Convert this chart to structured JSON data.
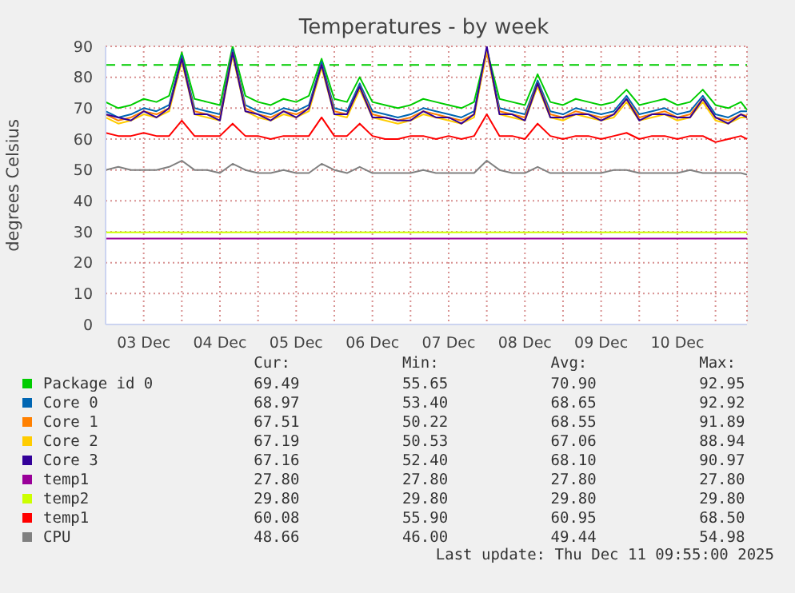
{
  "chart_data": {
    "type": "line",
    "title": "Temperatures - by week",
    "ylabel": "degrees Celsius",
    "x": [
      "2025-12-03T00:00",
      "2025-12-03T04:00",
      "2025-12-03T08:00",
      "2025-12-03T12:00",
      "2025-12-03T16:00",
      "2025-12-03T20:00",
      "2025-12-04T00:00",
      "2025-12-04T04:00",
      "2025-12-04T08:00",
      "2025-12-04T12:00",
      "2025-12-04T16:00",
      "2025-12-04T20:00",
      "2025-12-05T00:00",
      "2025-12-05T04:00",
      "2025-12-05T08:00",
      "2025-12-05T12:00",
      "2025-12-05T16:00",
      "2025-12-05T20:00",
      "2025-12-06T00:00",
      "2025-12-06T04:00",
      "2025-12-06T08:00",
      "2025-12-06T12:00",
      "2025-12-06T16:00",
      "2025-12-06T20:00",
      "2025-12-07T00:00",
      "2025-12-07T04:00",
      "2025-12-07T08:00",
      "2025-12-07T12:00",
      "2025-12-07T16:00",
      "2025-12-07T20:00",
      "2025-12-08T00:00",
      "2025-12-08T04:00",
      "2025-12-08T08:00",
      "2025-12-08T12:00",
      "2025-12-08T16:00",
      "2025-12-08T20:00",
      "2025-12-09T00:00",
      "2025-12-09T04:00",
      "2025-12-09T08:00",
      "2025-12-09T12:00",
      "2025-12-09T16:00",
      "2025-12-09T20:00",
      "2025-12-10T00:00",
      "2025-12-10T04:00",
      "2025-12-10T08:00",
      "2025-12-10T12:00",
      "2025-12-10T16:00",
      "2025-12-10T20:00",
      "2025-12-11T00:00",
      "2025-12-11T04:00",
      "2025-12-11T08:00",
      "2025-12-11T09:55"
    ],
    "series": [
      {
        "name": "Package id 0",
        "color": "#00cc00",
        "values": [
          72,
          70,
          71,
          73,
          72,
          74,
          88,
          73,
          72,
          71,
          90,
          74,
          72,
          71,
          73,
          72,
          74,
          86,
          73,
          72,
          80,
          72,
          71,
          70,
          71,
          73,
          72,
          71,
          70,
          72,
          89,
          73,
          72,
          71,
          81,
          72,
          71,
          73,
          72,
          71,
          72,
          76,
          71,
          72,
          73,
          71,
          72,
          76,
          71,
          70,
          72,
          69.5
        ]
      },
      {
        "name": "Core 0",
        "color": "#0066b3",
        "values": [
          69,
          67,
          68,
          70,
          69,
          71,
          87,
          70,
          69,
          68,
          89,
          71,
          69,
          68,
          70,
          69,
          71,
          85,
          70,
          69,
          78,
          69,
          68,
          67,
          68,
          70,
          69,
          68,
          67,
          69,
          89,
          70,
          69,
          68,
          79,
          69,
          68,
          70,
          69,
          68,
          69,
          74,
          68,
          69,
          70,
          68,
          69,
          74,
          68,
          67,
          69,
          69
        ]
      },
      {
        "name": "Core 1",
        "color": "#ff8000",
        "values": [
          68,
          66,
          67,
          69,
          68,
          70,
          86,
          69,
          68,
          67,
          88,
          70,
          68,
          67,
          69,
          68,
          70,
          84,
          69,
          68,
          77,
          68,
          67,
          66,
          67,
          69,
          68,
          67,
          66,
          68,
          88,
          69,
          68,
          67,
          78,
          68,
          67,
          69,
          68,
          67,
          68,
          73,
          67,
          68,
          69,
          67,
          68,
          73,
          67,
          66,
          68,
          67.5
        ]
      },
      {
        "name": "Core 2",
        "color": "#ffcc00",
        "values": [
          67,
          65,
          66,
          68,
          67,
          69,
          85,
          68,
          67,
          66,
          87,
          69,
          67,
          66,
          68,
          67,
          69,
          83,
          68,
          67,
          76,
          67,
          66,
          65,
          66,
          68,
          67,
          66,
          65,
          67,
          89,
          68,
          67,
          66,
          77,
          67,
          66,
          68,
          67,
          66,
          67,
          72,
          66,
          67,
          68,
          66,
          67,
          72,
          66,
          65,
          67,
          67
        ]
      },
      {
        "name": "Core 3",
        "color": "#330099",
        "values": [
          68,
          67,
          66,
          69,
          67,
          70,
          86,
          68,
          68,
          66,
          88,
          69,
          68,
          66,
          69,
          67,
          70,
          84,
          68,
          68,
          77,
          67,
          67,
          66,
          66,
          69,
          67,
          67,
          65,
          68,
          90,
          68,
          68,
          66,
          78,
          67,
          67,
          68,
          68,
          66,
          68,
          73,
          66,
          68,
          68,
          67,
          67,
          73,
          67,
          65,
          68,
          67
        ]
      },
      {
        "name": "temp1",
        "color": "#990099",
        "x": [
          "2025-12-03T00:00",
          "2025-12-11T09:55"
        ],
        "values": [
          27.8,
          27.8
        ]
      },
      {
        "name": "temp2",
        "color": "#ccff00",
        "x": [
          "2025-12-03T00:00",
          "2025-12-11T09:55"
        ],
        "values": [
          29.8,
          29.8
        ]
      },
      {
        "name": "temp1",
        "color": "#ff0000",
        "values": [
          62,
          61,
          61,
          62,
          61,
          61,
          66,
          61,
          61,
          61,
          65,
          61,
          61,
          60,
          61,
          61,
          61,
          67,
          61,
          61,
          65,
          61,
          60,
          60,
          61,
          61,
          60,
          61,
          60,
          61,
          68,
          61,
          61,
          60,
          65,
          61,
          60,
          61,
          61,
          60,
          61,
          62,
          60,
          61,
          61,
          60,
          61,
          61,
          59,
          60,
          61,
          60
        ]
      },
      {
        "name": "CPU",
        "color": "#808080",
        "values": [
          50,
          51,
          50,
          50,
          50,
          51,
          53,
          50,
          50,
          49,
          52,
          50,
          49,
          49,
          50,
          49,
          49,
          52,
          50,
          49,
          51,
          49,
          49,
          49,
          49,
          50,
          49,
          49,
          49,
          49,
          53,
          50,
          49,
          49,
          51,
          49,
          49,
          49,
          49,
          49,
          50,
          50,
          49,
          49,
          49,
          49,
          50,
          49,
          49,
          49,
          49,
          48.5
        ]
      }
    ],
    "xlim": [
      "2025-12-03T00:00",
      "2025-12-11T09:55"
    ],
    "xticks": [
      {
        "value": "2025-12-03T12:00",
        "label": "03 Dec"
      },
      {
        "value": "2025-12-04T00:00",
        "label": null
      },
      {
        "value": "2025-12-04T12:00",
        "label": "04 Dec"
      },
      {
        "value": "2025-12-05T00:00",
        "label": null
      },
      {
        "value": "2025-12-05T12:00",
        "label": "05 Dec"
      },
      {
        "value": "2025-12-06T00:00",
        "label": null
      },
      {
        "value": "2025-12-06T12:00",
        "label": "06 Dec"
      },
      {
        "value": "2025-12-07T00:00",
        "label": null
      },
      {
        "value": "2025-12-07T12:00",
        "label": "07 Dec"
      },
      {
        "value": "2025-12-08T00:00",
        "label": null
      },
      {
        "value": "2025-12-08T12:00",
        "label": "08 Dec"
      },
      {
        "value": "2025-12-09T00:00",
        "label": null
      },
      {
        "value": "2025-12-09T12:00",
        "label": "09 Dec"
      },
      {
        "value": "2025-12-10T00:00",
        "label": null
      },
      {
        "value": "2025-12-10T12:00",
        "label": "10 Dec"
      },
      {
        "value": "2025-12-11T00:00",
        "label": null
      }
    ],
    "ylim": [
      0,
      90
    ],
    "yticks": [
      0,
      10,
      20,
      30,
      40,
      50,
      60,
      70,
      80,
      90
    ],
    "ref_lines": [
      {
        "axis": "y",
        "value": 84,
        "color": "#00cc00",
        "line_style": "dashed"
      }
    ],
    "grid": true,
    "legend": "bottom",
    "marker": "none",
    "line_style": "solid",
    "annotations": [
      "Cur:",
      "Min:",
      "Avg:",
      "Max:",
      "69.49",
      "55.65",
      "70.90",
      "92.95",
      "68.97",
      "53.40",
      "68.65",
      "92.92",
      "67.51",
      "50.22",
      "68.55",
      "91.89",
      "67.19",
      "50.53",
      "67.06",
      "88.94",
      "67.16",
      "52.40",
      "68.10",
      "90.97",
      "27.80",
      "27.80",
      "27.80",
      "27.80",
      "29.80",
      "29.80",
      "29.80",
      "29.80",
      "60.08",
      "55.90",
      "60.95",
      "68.50",
      "48.66",
      "46.00",
      "49.44",
      "54.98",
      "Last update: Thu Dec 11 09:55:00 2025"
    ]
  }
}
